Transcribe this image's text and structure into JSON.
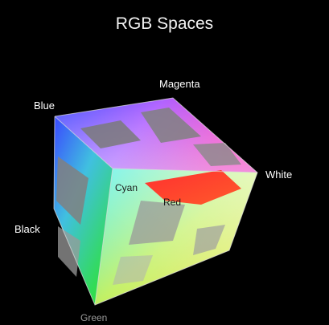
{
  "title": "RGB Spaces",
  "corners": {
    "blue": "Blue",
    "magenta": "Magenta",
    "white": "White",
    "cyan": "Cyan",
    "red": "Red",
    "black": "Black",
    "green": "Green"
  },
  "colors": {
    "blue": "#2a3cff",
    "magenta": "#ff2aa8",
    "white": "#f4f4ff",
    "cyan": "#40f0f0",
    "red": "#ff2a2a",
    "black": "#101010",
    "green": "#30e030",
    "yellow": "#f0f020",
    "background": "#000000"
  }
}
